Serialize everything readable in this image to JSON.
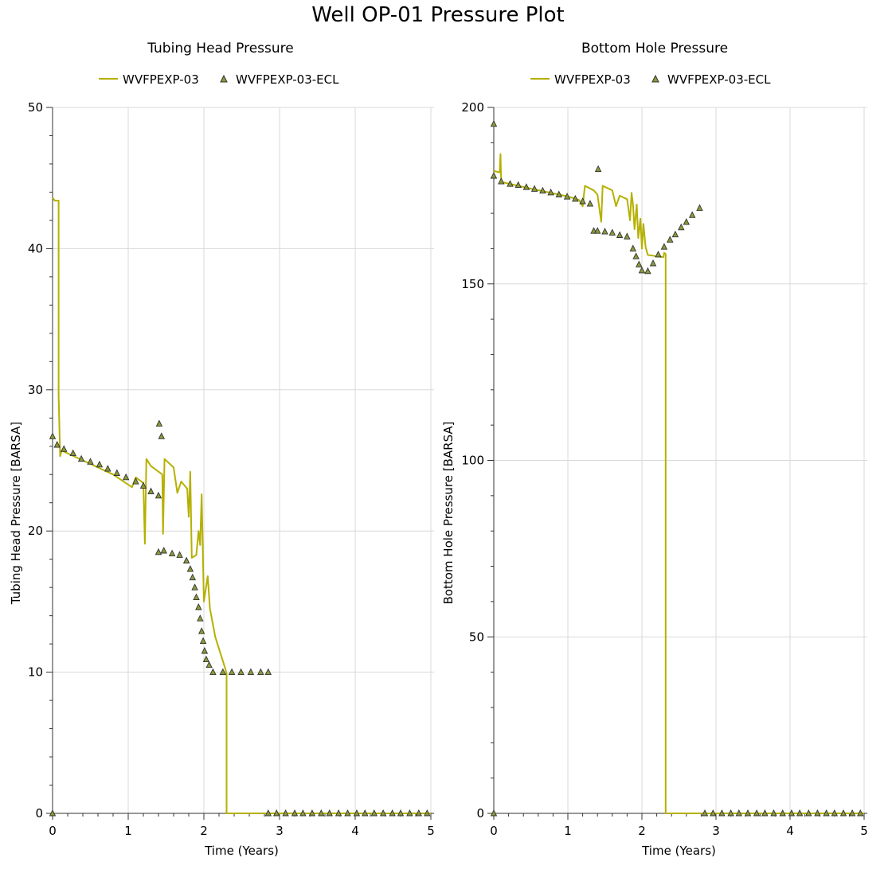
{
  "title": "Well OP-01 Pressure Plot",
  "colors": {
    "line": "#b5b000",
    "marker_fill": "#8a9a3a",
    "marker_stroke": "#333333",
    "grid": "#d9d9d9"
  },
  "chart_data": [
    {
      "type": "line",
      "title": "Tubing Head Pressure",
      "xlabel": "Time (Years)",
      "ylabel": "Tubing Head Pressure [BARSA]",
      "xlim": [
        0,
        5
      ],
      "ylim": [
        0,
        50
      ],
      "x_ticks": [
        "0",
        "1",
        "2",
        "3",
        "4",
        "5"
      ],
      "y_ticks": [
        "0",
        "10",
        "20",
        "30",
        "40",
        "50"
      ],
      "grid": true,
      "legend_position": "top",
      "series": [
        {
          "name": "WVFPEXP-03",
          "style": "line",
          "points": [
            [
              0,
              43.6
            ],
            [
              0.03,
              43.4
            ],
            [
              0.08,
              43.4
            ],
            [
              0.08,
              29.6
            ],
            [
              0.1,
              25.3
            ],
            [
              0.12,
              25.7
            ],
            [
              0.4,
              25.0
            ],
            [
              0.8,
              24.0
            ],
            [
              1.05,
              23.1
            ],
            [
              1.1,
              23.8
            ],
            [
              1.2,
              23.4
            ],
            [
              1.22,
              19.1
            ],
            [
              1.24,
              25.1
            ],
            [
              1.3,
              24.6
            ],
            [
              1.45,
              24.0
            ],
            [
              1.46,
              19.8
            ],
            [
              1.48,
              25.1
            ],
            [
              1.6,
              24.5
            ],
            [
              1.65,
              22.7
            ],
            [
              1.7,
              23.5
            ],
            [
              1.78,
              23.0
            ],
            [
              1.8,
              21.0
            ],
            [
              1.82,
              24.2
            ],
            [
              1.84,
              18.1
            ],
            [
              1.9,
              18.3
            ],
            [
              1.93,
              20.0
            ],
            [
              1.95,
              19.0
            ],
            [
              1.97,
              22.6
            ],
            [
              2.0,
              15.0
            ],
            [
              2.05,
              16.8
            ],
            [
              2.08,
              14.5
            ],
            [
              2.15,
              12.5
            ],
            [
              2.28,
              10.3
            ],
            [
              2.3,
              9.9
            ],
            [
              2.3,
              0
            ],
            [
              5,
              0
            ]
          ]
        },
        {
          "name": "WVFPEXP-03-ECL",
          "style": "marker",
          "points": [
            [
              0,
              26.7
            ],
            [
              0.06,
              26.1
            ],
            [
              0.15,
              25.8
            ],
            [
              0.27,
              25.5
            ],
            [
              0.38,
              25.1
            ],
            [
              0.5,
              24.9
            ],
            [
              0.62,
              24.7
            ],
            [
              0.73,
              24.4
            ],
            [
              0.85,
              24.1
            ],
            [
              0.97,
              23.8
            ],
            [
              1.1,
              23.5
            ],
            [
              1.2,
              23.2
            ],
            [
              1.3,
              22.8
            ],
            [
              1.4,
              22.5
            ],
            [
              1.41,
              27.6
            ],
            [
              1.44,
              26.7
            ],
            [
              1.4,
              18.5
            ],
            [
              1.47,
              18.6
            ],
            [
              1.58,
              18.4
            ],
            [
              1.68,
              18.3
            ],
            [
              1.77,
              17.9
            ],
            [
              1.82,
              17.3
            ],
            [
              1.85,
              16.7
            ],
            [
              1.88,
              16.0
            ],
            [
              1.9,
              15.3
            ],
            [
              1.93,
              14.6
            ],
            [
              1.95,
              13.8
            ],
            [
              1.97,
              12.9
            ],
            [
              1.99,
              12.2
            ],
            [
              2.01,
              11.5
            ],
            [
              2.03,
              10.9
            ],
            [
              2.07,
              10.5
            ],
            [
              2.12,
              10.0
            ],
            [
              2.25,
              10.0
            ],
            [
              2.37,
              10.0
            ],
            [
              2.49,
              10.0
            ],
            [
              2.62,
              10.0
            ],
            [
              2.75,
              10.0
            ],
            [
              2.85,
              10.0
            ],
            [
              0,
              0
            ],
            [
              2.85,
              0
            ],
            [
              2.96,
              0
            ],
            [
              3.08,
              0
            ],
            [
              3.2,
              0
            ],
            [
              3.31,
              0
            ],
            [
              3.43,
              0
            ],
            [
              3.55,
              0
            ],
            [
              3.66,
              0
            ],
            [
              3.78,
              0
            ],
            [
              3.9,
              0
            ],
            [
              4.02,
              0
            ],
            [
              4.13,
              0
            ],
            [
              4.25,
              0
            ],
            [
              4.37,
              0
            ],
            [
              4.49,
              0
            ],
            [
              4.6,
              0
            ],
            [
              4.72,
              0
            ],
            [
              4.84,
              0
            ],
            [
              4.95,
              0
            ]
          ]
        }
      ]
    },
    {
      "type": "line",
      "title": "Bottom Hole Pressure",
      "xlabel": "Time (Years)",
      "ylabel": "Bottom Hole Pressure [BARSA]",
      "xlim": [
        0,
        5
      ],
      "ylim": [
        0,
        200
      ],
      "x_ticks": [
        "0",
        "1",
        "2",
        "3",
        "4",
        "5"
      ],
      "y_ticks": [
        "0",
        "50",
        "100",
        "150",
        "200"
      ],
      "grid": true,
      "legend_position": "top",
      "series": [
        {
          "name": "WVFPEXP-03",
          "style": "line",
          "points": [
            [
              0,
              182
            ],
            [
              0.08,
              181.6
            ],
            [
              0.09,
              186.8
            ],
            [
              0.1,
              179
            ],
            [
              0.12,
              178.8
            ],
            [
              0.5,
              177
            ],
            [
              1.0,
              174.8
            ],
            [
              1.15,
              173.8
            ],
            [
              1.2,
              172
            ],
            [
              1.23,
              177.8
            ],
            [
              1.35,
              176.5
            ],
            [
              1.4,
              175.3
            ],
            [
              1.45,
              167.6
            ],
            [
              1.47,
              177.8
            ],
            [
              1.6,
              176.5
            ],
            [
              1.65,
              172
            ],
            [
              1.7,
              175
            ],
            [
              1.8,
              174
            ],
            [
              1.84,
              168
            ],
            [
              1.86,
              175.8
            ],
            [
              1.88,
              172.5
            ],
            [
              1.9,
              165.5
            ],
            [
              1.93,
              172.5
            ],
            [
              1.95,
              163
            ],
            [
              1.98,
              168.5
            ],
            [
              2.0,
              160
            ],
            [
              2.02,
              167
            ],
            [
              2.05,
              160.5
            ],
            [
              2.08,
              158.2
            ],
            [
              2.15,
              158.0
            ],
            [
              2.2,
              157.8
            ],
            [
              2.29,
              157.6
            ],
            [
              2.3,
              158.8
            ],
            [
              2.32,
              158.5
            ],
            [
              2.32,
              0
            ],
            [
              5,
              0
            ]
          ]
        },
        {
          "name": "WVFPEXP-03-ECL",
          "style": "marker",
          "points": [
            [
              0,
              195.3
            ],
            [
              0,
              180.6
            ],
            [
              0.1,
              179
            ],
            [
              0.22,
              178.3
            ],
            [
              0.33,
              178
            ],
            [
              0.44,
              177.4
            ],
            [
              0.55,
              176.9
            ],
            [
              0.66,
              176.4
            ],
            [
              0.77,
              175.9
            ],
            [
              0.88,
              175.3
            ],
            [
              0.99,
              174.7
            ],
            [
              1.1,
              174.1
            ],
            [
              1.2,
              173.4
            ],
            [
              1.3,
              172.7
            ],
            [
              1.35,
              165
            ],
            [
              1.4,
              165
            ],
            [
              1.41,
              182.5
            ],
            [
              1.5,
              164.8
            ],
            [
              1.6,
              164.5
            ],
            [
              1.7,
              163.8
            ],
            [
              1.8,
              163.4
            ],
            [
              1.88,
              160
            ],
            [
              1.92,
              157.8
            ],
            [
              1.96,
              155.5
            ],
            [
              2.0,
              153.8
            ],
            [
              2.08,
              153.6
            ],
            [
              2.15,
              155.8
            ],
            [
              2.22,
              158.3
            ],
            [
              2.3,
              160.5
            ],
            [
              2.38,
              162.5
            ],
            [
              2.45,
              164
            ],
            [
              2.53,
              166
            ],
            [
              2.6,
              167.5
            ],
            [
              2.68,
              169.5
            ],
            [
              2.78,
              171.5
            ],
            [
              0,
              0
            ],
            [
              2.85,
              0
            ],
            [
              2.96,
              0
            ],
            [
              3.08,
              0
            ],
            [
              3.2,
              0
            ],
            [
              3.31,
              0
            ],
            [
              3.43,
              0
            ],
            [
              3.55,
              0
            ],
            [
              3.66,
              0
            ],
            [
              3.78,
              0
            ],
            [
              3.9,
              0
            ],
            [
              4.02,
              0
            ],
            [
              4.13,
              0
            ],
            [
              4.25,
              0
            ],
            [
              4.37,
              0
            ],
            [
              4.49,
              0
            ],
            [
              4.6,
              0
            ],
            [
              4.72,
              0
            ],
            [
              4.84,
              0
            ],
            [
              4.95,
              0
            ]
          ]
        }
      ]
    }
  ]
}
